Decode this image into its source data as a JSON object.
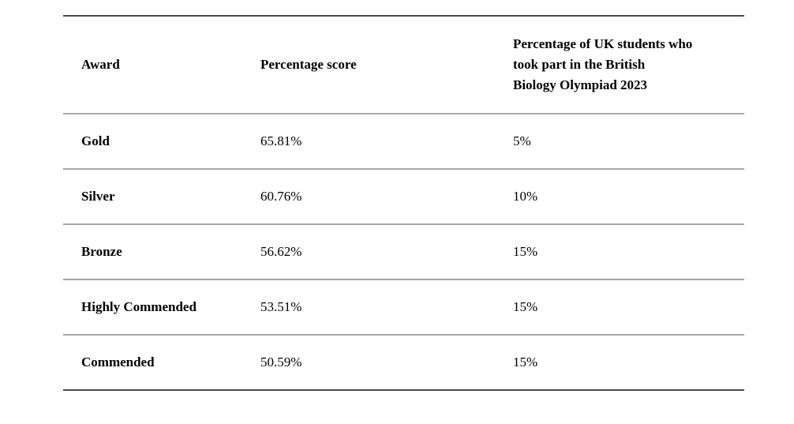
{
  "table": {
    "headers": {
      "award": "Award",
      "score": "Percentage score",
      "uk_students": "Percentage of UK students who\ntook part in the British\nBiology Olympiad 2023"
    },
    "rows": [
      {
        "award": "Gold",
        "score": "65.81%",
        "uk_students": "5%"
      },
      {
        "award": "Silver",
        "score": "60.76%",
        "uk_students": "10%"
      },
      {
        "award": "Bronze",
        "score": "56.62%",
        "uk_students": "15%"
      },
      {
        "award": "Highly Commended",
        "score": "53.51%",
        "uk_students": "15%"
      },
      {
        "award": "Commended",
        "score": "50.59%",
        "uk_students": "15%"
      }
    ],
    "colors": {
      "outer_border": "#4a4a4a",
      "row_divider": "#a6a6a6",
      "text": "#000000",
      "background": "#ffffff"
    }
  }
}
